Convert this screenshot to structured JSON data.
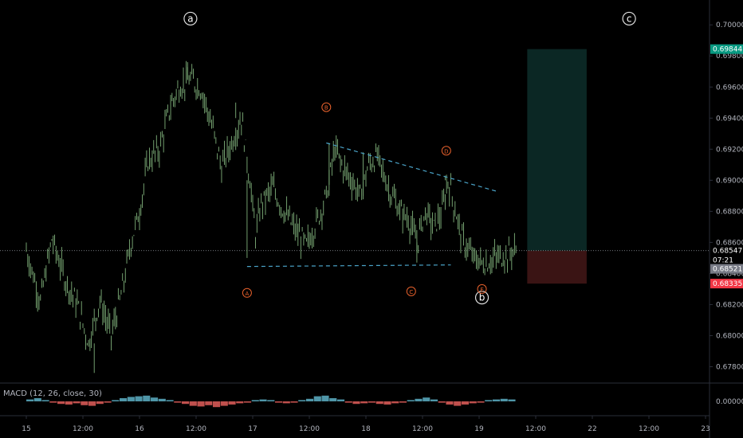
{
  "chart_data": {
    "type": "line",
    "symbol_timeframe": "",
    "ylim": [
      0.677,
      0.7016
    ],
    "y_ticks": [
      "0.67800",
      "0.68000",
      "0.68200",
      "0.68400",
      "0.68600",
      "0.68800",
      "0.69000",
      "0.69200",
      "0.69400",
      "0.69600",
      "0.69800",
      "0.70000"
    ],
    "x_ticks": [
      "15",
      "12:00",
      "16",
      "12:00",
      "17",
      "12:00",
      "18",
      "12:00",
      "19",
      "12:00",
      "22",
      "12:00",
      "23"
    ],
    "x_domain": [
      0,
      12.8
    ],
    "price_series": [
      [
        0.0,
        0.6855
      ],
      [
        0.25,
        0.6822
      ],
      [
        0.45,
        0.6862
      ],
      [
        0.7,
        0.6835
      ],
      [
        0.9,
        0.682
      ],
      [
        1.1,
        0.6795
      ],
      [
        1.3,
        0.6823
      ],
      [
        1.5,
        0.68
      ],
      [
        1.7,
        0.683
      ],
      [
        1.85,
        0.686
      ],
      [
        2.0,
        0.688
      ],
      [
        2.15,
        0.6912
      ],
      [
        2.35,
        0.692
      ],
      [
        2.55,
        0.6948
      ],
      [
        2.7,
        0.696
      ],
      [
        2.9,
        0.6965
      ],
      [
        3.1,
        0.6958
      ],
      [
        3.3,
        0.6932
      ],
      [
        3.45,
        0.6908
      ],
      [
        3.6,
        0.6922
      ],
      [
        3.8,
        0.694
      ],
      [
        3.95,
        0.69
      ],
      [
        4.05,
        0.6865
      ],
      [
        4.15,
        0.6885
      ],
      [
        4.35,
        0.6895
      ],
      [
        4.55,
        0.688
      ],
      [
        4.75,
        0.6868
      ],
      [
        4.95,
        0.6858
      ],
      [
        5.15,
        0.6875
      ],
      [
        5.3,
        0.689
      ],
      [
        5.45,
        0.692
      ],
      [
        5.6,
        0.6908
      ],
      [
        5.75,
        0.69
      ],
      [
        5.9,
        0.689
      ],
      [
        6.05,
        0.691
      ],
      [
        6.2,
        0.6915
      ],
      [
        6.4,
        0.6895
      ],
      [
        6.6,
        0.688
      ],
      [
        6.75,
        0.6875
      ],
      [
        6.9,
        0.686
      ],
      [
        7.05,
        0.688
      ],
      [
        7.2,
        0.687
      ],
      [
        7.35,
        0.688
      ],
      [
        7.45,
        0.69
      ],
      [
        7.55,
        0.6885
      ],
      [
        7.7,
        0.6862
      ],
      [
        7.9,
        0.685
      ],
      [
        8.1,
        0.6846
      ],
      [
        8.3,
        0.685
      ],
      [
        8.5,
        0.6852
      ],
      [
        8.6,
        0.6855
      ],
      [
        8.65,
        0.6853
      ]
    ],
    "price_spikes": [
      [
        2.85,
        0.6976
      ],
      [
        3.7,
        0.695
      ],
      [
        3.9,
        0.685
      ],
      [
        5.35,
        0.6924
      ],
      [
        5.95,
        0.6918
      ],
      [
        6.9,
        0.6847
      ],
      [
        7.4,
        0.6903
      ],
      [
        8.0,
        0.6843
      ],
      [
        8.65,
        0.6858
      ],
      [
        1.2,
        0.6776
      ]
    ],
    "wave_labels": [
      {
        "text": "a",
        "x": 2.9,
        "y": 0.7004
      },
      {
        "text": "b",
        "x": 8.05,
        "y": 0.68245
      },
      {
        "text": "c",
        "x": 10.65,
        "y": 0.7004
      }
    ],
    "sub_wave_labels": [
      {
        "text": "A",
        "x": 3.9,
        "y": 0.68275
      },
      {
        "text": "B",
        "x": 5.3,
        "y": 0.6947
      },
      {
        "text": "C",
        "x": 6.8,
        "y": 0.68285
      },
      {
        "text": "D",
        "x": 7.42,
        "y": 0.6919
      },
      {
        "text": "E",
        "x": 8.05,
        "y": 0.683
      }
    ],
    "trendlines": [
      [
        [
          5.3,
          0.6924
        ],
        [
          8.3,
          0.6893
        ]
      ],
      [
        [
          3.9,
          0.68445
        ],
        [
          7.5,
          0.68455
        ]
      ]
    ],
    "position": {
      "x_start": 8.85,
      "x_end": 9.9,
      "entry": 0.68547,
      "target": 0.69844,
      "stop": 0.68335
    },
    "current_price": 0.68547,
    "price_badges": [
      {
        "label": "0.69844",
        "value": 0.69844,
        "color": "#089981"
      },
      {
        "label": "0.68547",
        "value": 0.68547,
        "color": "#000000"
      },
      {
        "label": "07:21",
        "value": 0.68487,
        "color": "#000000"
      },
      {
        "label": "0.68521",
        "value": 0.6843,
        "color": "#787b86"
      },
      {
        "label": "0.68335",
        "value": 0.68335,
        "color": "#f23645"
      }
    ],
    "macd": {
      "label": "MACD (12, 26, close, 30)",
      "tick": "0.00000",
      "ylim": [
        -1,
        1
      ],
      "histogram": [
        0.3,
        0.5,
        0.2,
        -0.2,
        -0.4,
        -0.5,
        -0.3,
        -0.6,
        -0.7,
        -0.4,
        -0.2,
        0.2,
        0.5,
        0.7,
        0.8,
        0.9,
        0.6,
        0.4,
        0.2,
        -0.2,
        -0.4,
        -0.7,
        -0.8,
        -0.6,
        -0.9,
        -0.7,
        -0.5,
        -0.3,
        -0.2,
        0.2,
        0.3,
        0.2,
        -0.2,
        -0.3,
        -0.2,
        0.2,
        0.4,
        0.8,
        0.9,
        0.5,
        0.3,
        -0.2,
        -0.4,
        -0.3,
        -0.2,
        -0.4,
        -0.5,
        -0.3,
        -0.2,
        0.2,
        0.4,
        0.6,
        0.3,
        -0.2,
        -0.5,
        -0.7,
        -0.5,
        -0.3,
        -0.2,
        0.2,
        0.3,
        0.4,
        0.3
      ]
    }
  },
  "colors": {
    "candle": "#7fb07a",
    "trend": "#4aa3c8",
    "label_orange": "#e8612c",
    "target_fill": "#0b2724",
    "stop_fill": "#3a1414",
    "macd_up": "#4f96a8",
    "macd_down": "#c0504d"
  }
}
